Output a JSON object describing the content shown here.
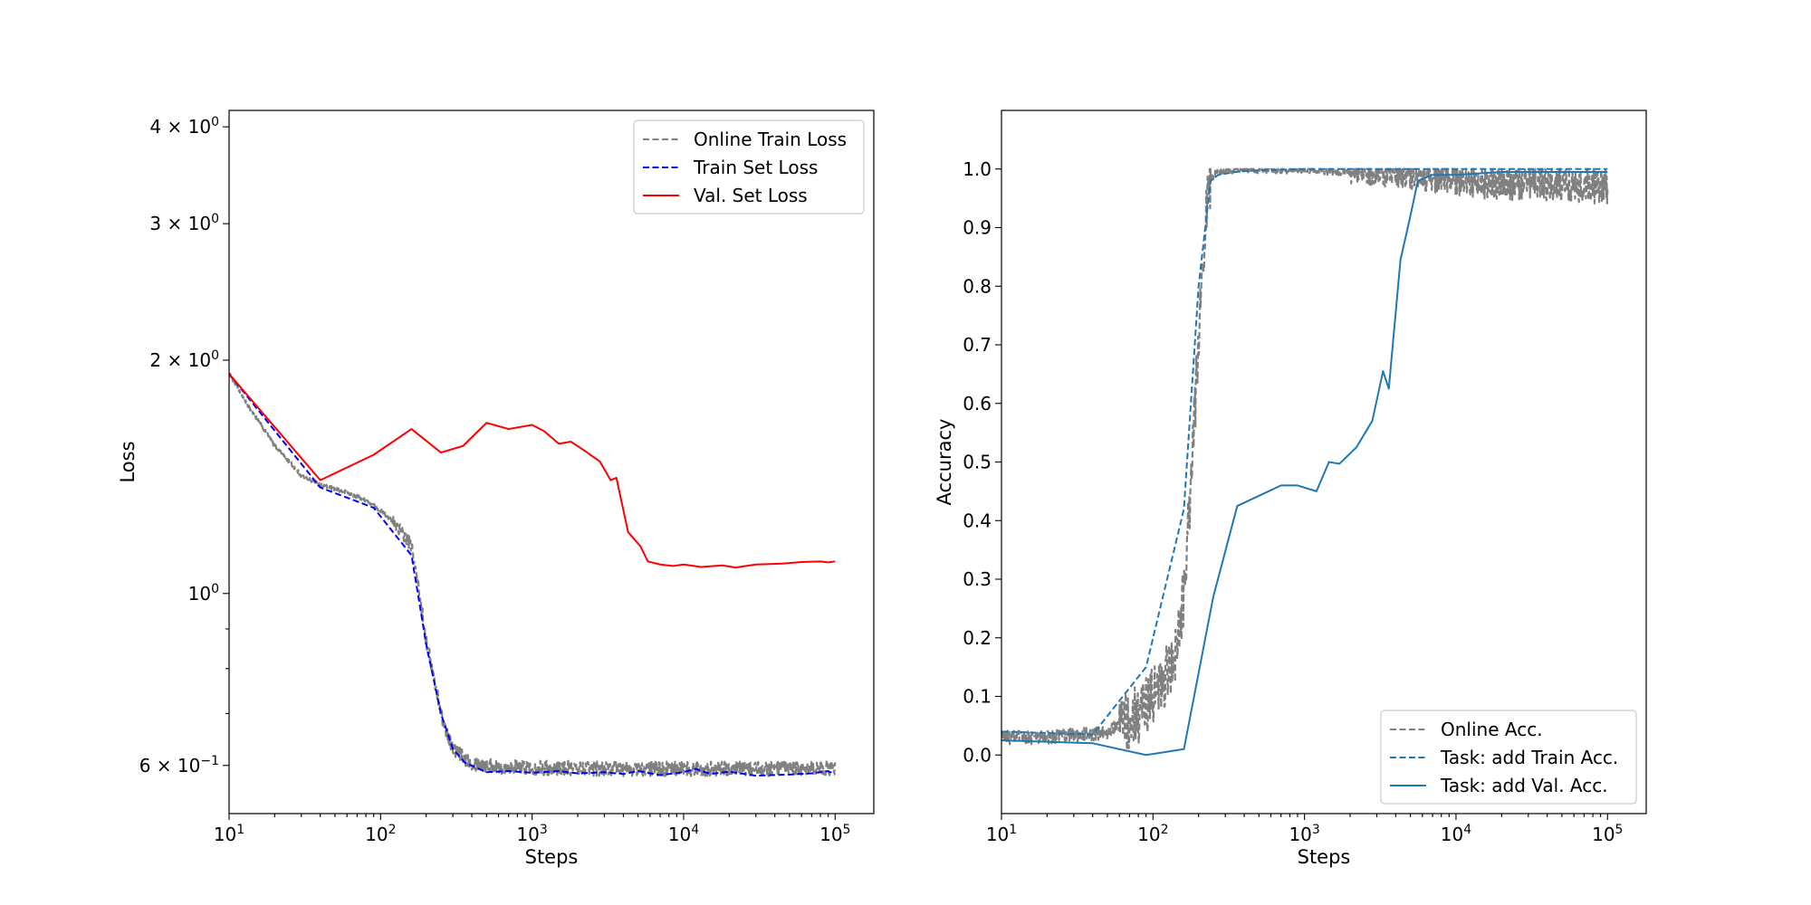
{
  "chart_data": [
    {
      "type": "line",
      "title": "",
      "xlabel": "Steps",
      "ylabel": "Loss",
      "xscale": "log",
      "yscale": "log",
      "xlim": [
        10,
        180000
      ],
      "ylim": [
        0.52,
        4.2
      ],
      "grid": false,
      "legend_position": "top-right",
      "xticks": [
        {
          "value": 10,
          "base": "10",
          "exp": "1"
        },
        {
          "value": 100,
          "base": "10",
          "exp": "2"
        },
        {
          "value": 1000,
          "base": "10",
          "exp": "3"
        },
        {
          "value": 10000,
          "base": "10",
          "exp": "4"
        },
        {
          "value": 100000,
          "base": "10",
          "exp": "5"
        }
      ],
      "yticks": [
        {
          "value": 4,
          "mant": "4",
          "base": "10",
          "exp": "0"
        },
        {
          "value": 3,
          "mant": "3",
          "base": "10",
          "exp": "0"
        },
        {
          "value": 2,
          "mant": "2",
          "base": "10",
          "exp": "0"
        },
        {
          "value": 1,
          "mant": "",
          "base": "10",
          "exp": "0"
        },
        {
          "value": 0.6,
          "mant": "6",
          "base": "10",
          "exp": "−1"
        }
      ],
      "yminor_ticks": [
        0.7,
        0.8,
        0.9
      ],
      "series": [
        {
          "name": "Online Train Loss",
          "color": "#808080",
          "style": "dashed",
          "noisy": true,
          "x": [
            10,
            14,
            20,
            30,
            40,
            60,
            80,
            100,
            130,
            160,
            180,
            200,
            230,
            260,
            300,
            350,
            400,
            500,
            700,
            1000,
            2000,
            5000,
            10000,
            20000,
            50000,
            100000
          ],
          "y": [
            1.92,
            1.72,
            1.55,
            1.42,
            1.38,
            1.35,
            1.32,
            1.28,
            1.22,
            1.15,
            1.0,
            0.87,
            0.76,
            0.68,
            0.63,
            0.615,
            0.605,
            0.6,
            0.597,
            0.596,
            0.595,
            0.594,
            0.594,
            0.594,
            0.594,
            0.594
          ]
        },
        {
          "name": "Train Set Loss",
          "color": "#0000ff",
          "style": "dashed",
          "x": [
            10,
            40,
            90,
            160,
            200,
            250,
            300,
            360,
            500,
            700,
            1000,
            1500,
            2000,
            3000,
            4000,
            5000,
            7000,
            10000,
            12000,
            15000,
            20000,
            30000,
            50000,
            70000,
            90000,
            100000
          ],
          "y": [
            1.92,
            1.37,
            1.29,
            1.12,
            0.86,
            0.7,
            0.63,
            0.605,
            0.588,
            0.59,
            0.587,
            0.59,
            0.586,
            0.588,
            0.585,
            0.59,
            0.583,
            0.588,
            0.594,
            0.585,
            0.589,
            0.582,
            0.584,
            0.586,
            0.59,
            0.584
          ]
        },
        {
          "name": "Val. Set Loss",
          "color": "#ff0000",
          "style": "solid",
          "x": [
            10,
            40,
            90,
            160,
            250,
            350,
            500,
            700,
            1000,
            1200,
            1500,
            1800,
            2200,
            2800,
            3300,
            3600,
            4300,
            5200,
            5800,
            7000,
            8500,
            10000,
            13000,
            18000,
            22000,
            30000,
            45000,
            60000,
            80000,
            90000,
            100000
          ],
          "y": [
            1.92,
            1.4,
            1.51,
            1.63,
            1.52,
            1.55,
            1.66,
            1.63,
            1.65,
            1.62,
            1.56,
            1.57,
            1.53,
            1.48,
            1.4,
            1.41,
            1.2,
            1.15,
            1.1,
            1.09,
            1.085,
            1.09,
            1.082,
            1.087,
            1.08,
            1.09,
            1.093,
            1.098,
            1.1,
            1.097,
            1.1
          ]
        }
      ]
    },
    {
      "type": "line",
      "title": "",
      "xlabel": "Steps",
      "ylabel": "Accuracy",
      "xscale": "log",
      "yscale": "linear",
      "xlim": [
        10,
        180000
      ],
      "ylim": [
        -0.1,
        1.1
      ],
      "grid": false,
      "legend_position": "bottom-right",
      "xticks": [
        {
          "value": 10,
          "base": "10",
          "exp": "1"
        },
        {
          "value": 100,
          "base": "10",
          "exp": "2"
        },
        {
          "value": 1000,
          "base": "10",
          "exp": "3"
        },
        {
          "value": 10000,
          "base": "10",
          "exp": "4"
        },
        {
          "value": 100000,
          "base": "10",
          "exp": "5"
        }
      ],
      "yticks": [
        {
          "value": 0.0,
          "label": "0.0"
        },
        {
          "value": 0.1,
          "label": "0.1"
        },
        {
          "value": 0.2,
          "label": "0.2"
        },
        {
          "value": 0.3,
          "label": "0.3"
        },
        {
          "value": 0.4,
          "label": "0.4"
        },
        {
          "value": 0.5,
          "label": "0.5"
        },
        {
          "value": 0.6,
          "label": "0.6"
        },
        {
          "value": 0.7,
          "label": "0.7"
        },
        {
          "value": 0.8,
          "label": "0.8"
        },
        {
          "value": 0.9,
          "label": "0.9"
        },
        {
          "value": 1.0,
          "label": "1.0"
        }
      ],
      "series": [
        {
          "name": "Online Acc.",
          "color": "#808080",
          "style": "dashed",
          "noisy": true,
          "x": [
            10,
            20,
            30,
            40,
            50,
            60,
            80,
            100,
            120,
            140,
            160,
            180,
            200,
            220,
            240,
            260,
            300,
            400,
            1000,
            5000,
            10000,
            100000
          ],
          "y": [
            0.03,
            0.03,
            0.035,
            0.035,
            0.04,
            0.05,
            0.07,
            0.1,
            0.13,
            0.17,
            0.27,
            0.48,
            0.72,
            0.9,
            0.98,
            0.995,
            0.998,
            0.999,
            0.998,
            0.99,
            0.98,
            0.97
          ]
        },
        {
          "name": "Task: add Train Acc.",
          "color": "#1f77b4",
          "style": "dashed",
          "x": [
            10,
            40,
            90,
            160,
            200,
            240,
            270,
            350,
            500,
            1000,
            2000,
            5000,
            10000,
            100000
          ],
          "y": [
            0.04,
            0.035,
            0.15,
            0.42,
            0.8,
            0.98,
            0.99,
            0.995,
            0.998,
            1.0,
            1.0,
            1.0,
            1.0,
            1.0
          ]
        },
        {
          "name": "Task: add Val. Acc.",
          "color": "#1f77b4",
          "style": "solid",
          "x": [
            10,
            40,
            90,
            160,
            250,
            360,
            700,
            900,
            1200,
            1450,
            1700,
            2200,
            2800,
            3300,
            3600,
            4300,
            5000,
            5600,
            7000,
            10000,
            20000,
            50000,
            100000
          ],
          "y": [
            0.025,
            0.02,
            0.0,
            0.01,
            0.27,
            0.425,
            0.46,
            0.46,
            0.45,
            0.5,
            0.497,
            0.525,
            0.57,
            0.655,
            0.625,
            0.845,
            0.92,
            0.98,
            0.99,
            0.99,
            0.995,
            0.995,
            0.995
          ]
        }
      ]
    }
  ]
}
